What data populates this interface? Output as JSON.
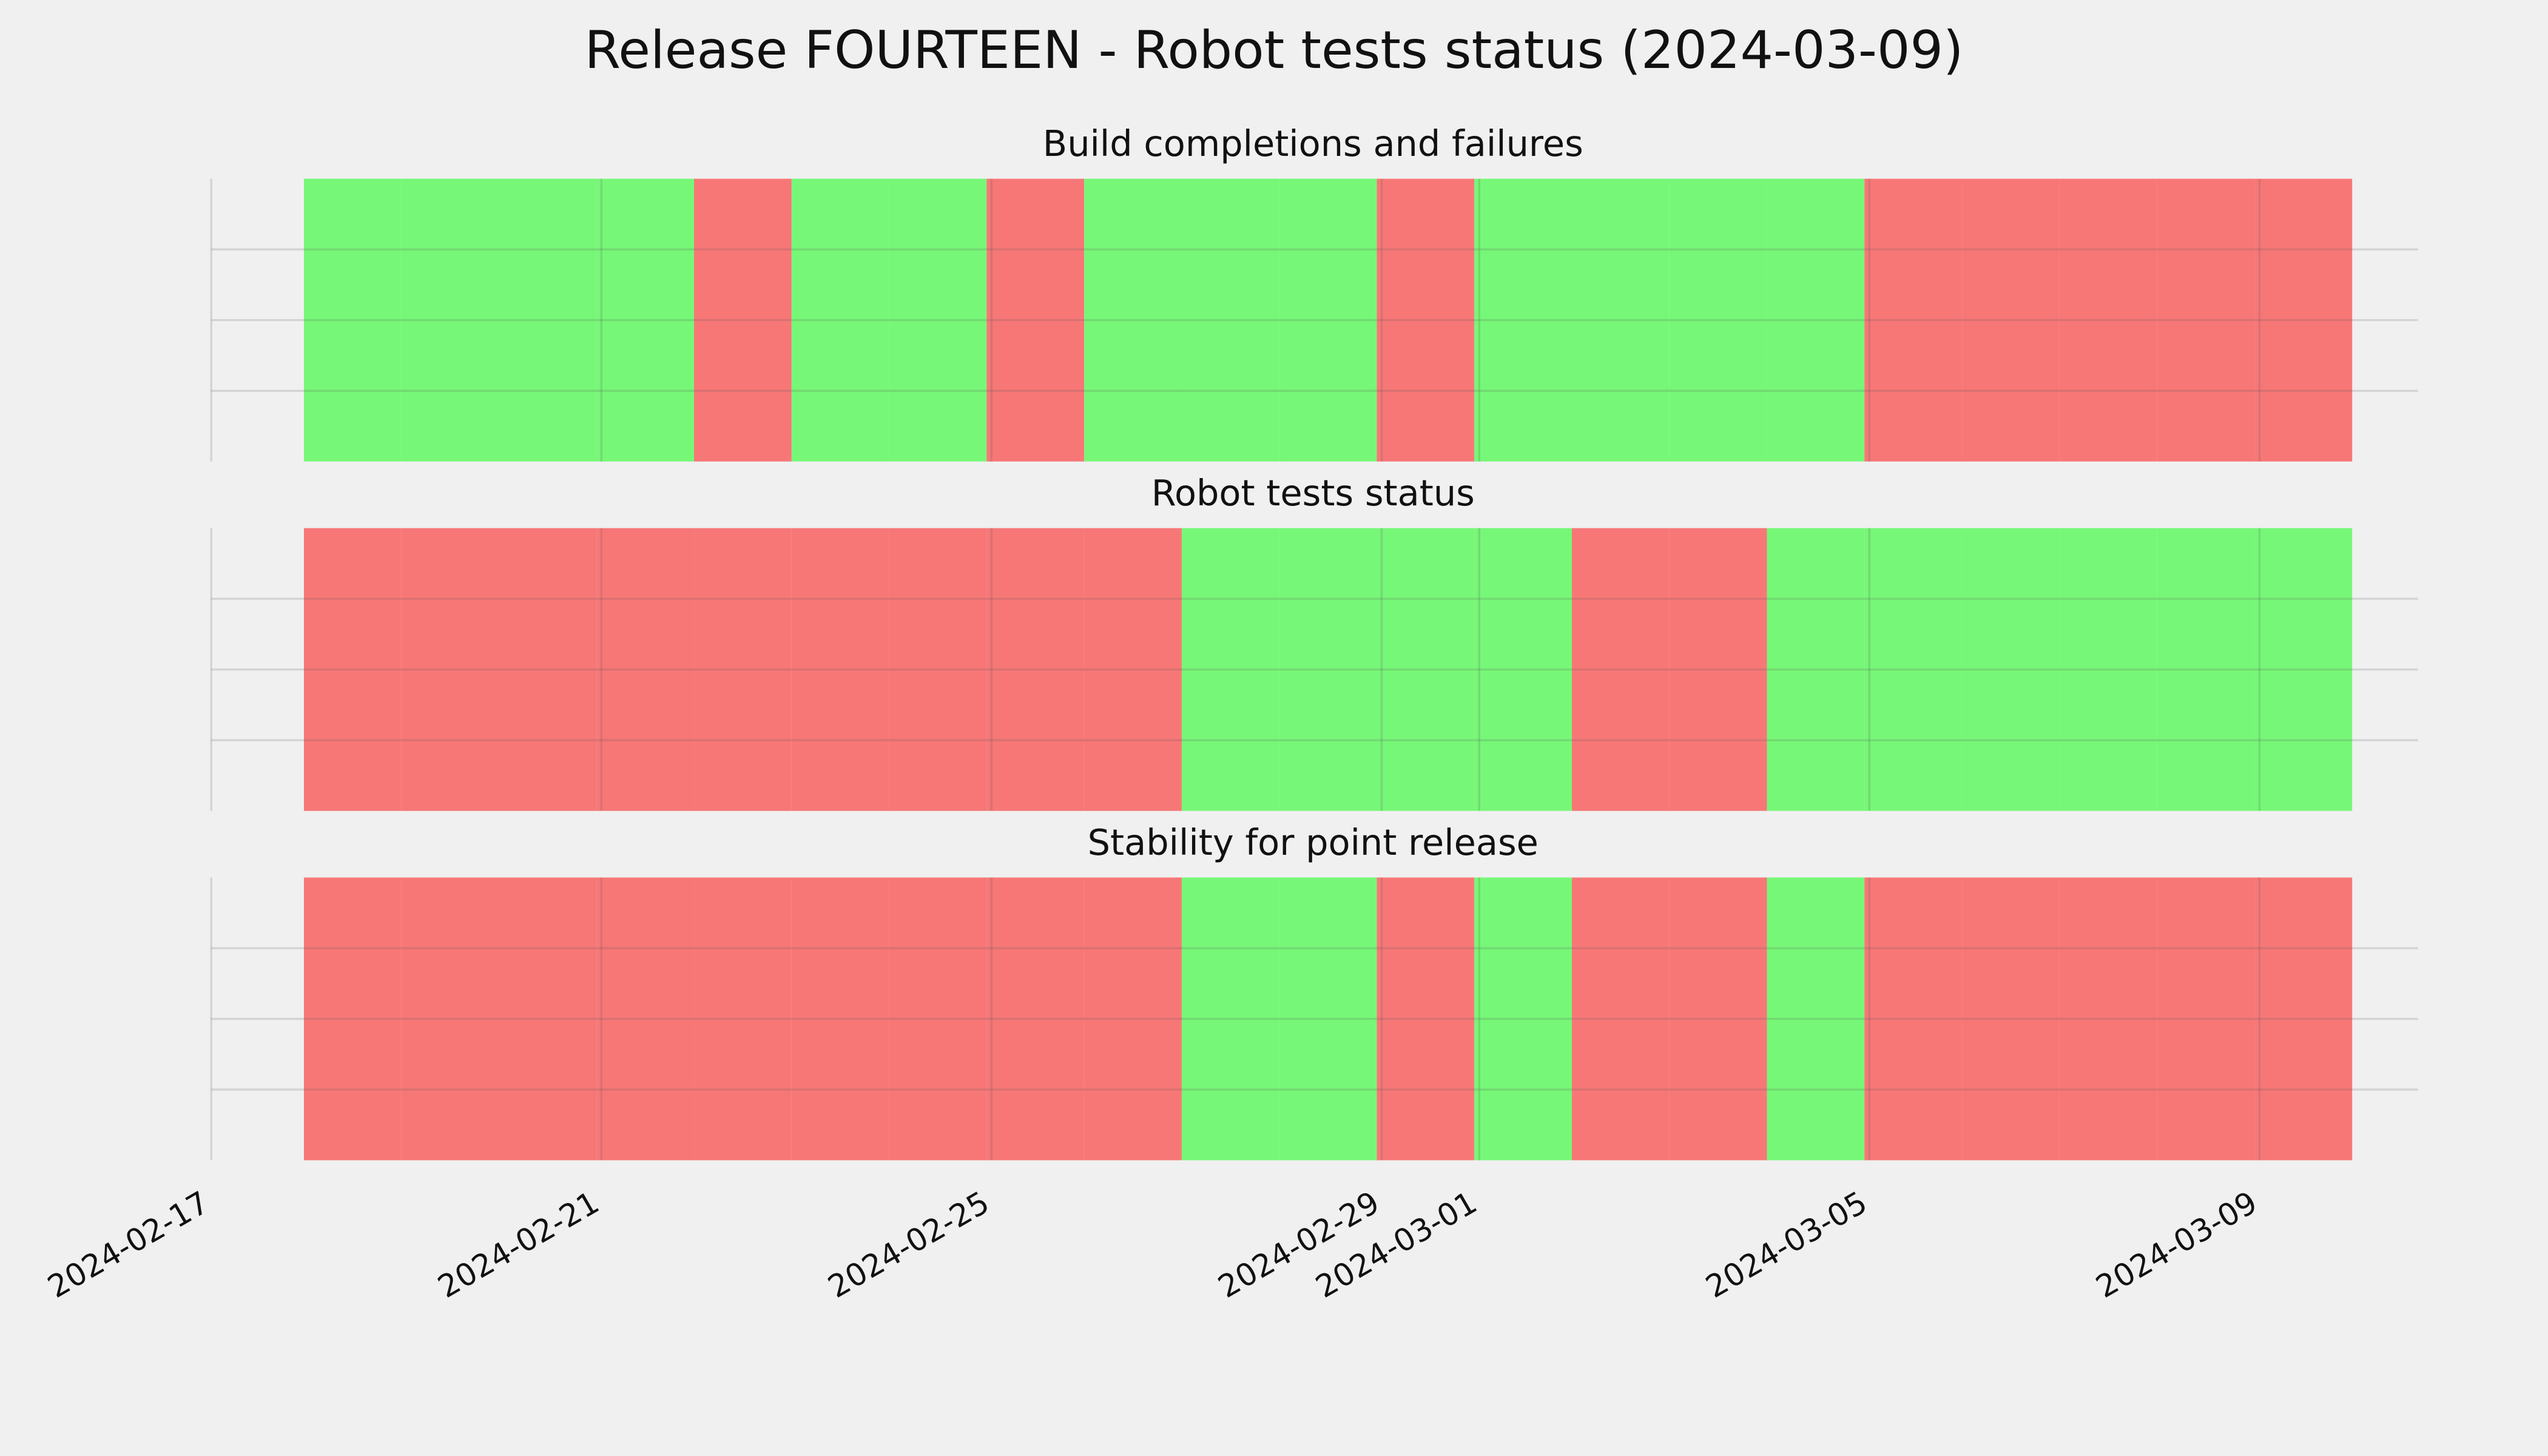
{
  "title": "Release FOURTEEN - Robot tests status (2024-03-09)",
  "axes": {
    "xlim": [
      "2024-02-17",
      "2024-03-10T15:00"
    ],
    "xticks": [
      "2024-02-17",
      "2024-02-21",
      "2024-02-25",
      "2024-02-29",
      "2024-03-01",
      "2024-03-05",
      "2024-03-09"
    ],
    "ylim": [
      0,
      1
    ],
    "yticks": [
      0.25,
      0.5,
      0.75
    ],
    "grid": true,
    "pass_color": "#77f777",
    "fail_color": "#f77777",
    "dates": [
      "2024-02-18",
      "2024-02-19",
      "2024-02-20",
      "2024-02-21",
      "2024-02-22",
      "2024-02-23",
      "2024-02-24",
      "2024-02-25",
      "2024-02-26",
      "2024-02-27",
      "2024-02-28",
      "2024-02-29",
      "2024-03-01",
      "2024-03-02",
      "2024-03-03",
      "2024-03-04",
      "2024-03-05",
      "2024-03-06",
      "2024-03-07",
      "2024-03-08",
      "2024-03-09"
    ]
  },
  "chart_data": [
    {
      "type": "timeline",
      "title": "Build completions and failures",
      "status": [
        true,
        true,
        true,
        true,
        false,
        true,
        true,
        false,
        true,
        true,
        true,
        false,
        true,
        true,
        true,
        true,
        false,
        false,
        false,
        false,
        false
      ]
    },
    {
      "type": "timeline",
      "title": "Robot tests status",
      "status": [
        false,
        false,
        false,
        false,
        false,
        false,
        false,
        false,
        false,
        true,
        true,
        true,
        true,
        false,
        false,
        true,
        true,
        true,
        true,
        true,
        true
      ]
    },
    {
      "type": "timeline",
      "title": "Stability for point release",
      "status": [
        false,
        false,
        false,
        false,
        false,
        false,
        false,
        false,
        false,
        true,
        true,
        false,
        true,
        false,
        false,
        true,
        false,
        false,
        false,
        false,
        false
      ]
    }
  ]
}
